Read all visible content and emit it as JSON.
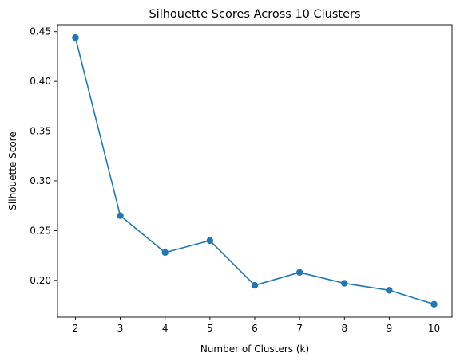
{
  "chart_data": {
    "type": "line",
    "title": "Silhouette Scores Across 10 Clusters",
    "xlabel": "Number of Clusters (k)",
    "ylabel": "Silhouette Score",
    "xlim": [
      1.6,
      10.4
    ],
    "ylim": [
      0.163,
      0.457
    ],
    "xticks": [
      2,
      3,
      4,
      5,
      6,
      7,
      8,
      9,
      10
    ],
    "yticks": [
      0.2,
      0.25,
      0.3,
      0.35,
      0.4,
      0.45
    ],
    "ytick_labels": [
      "0.20",
      "0.25",
      "0.30",
      "0.35",
      "0.40",
      "0.45"
    ],
    "grid": false,
    "marker": "circle",
    "color": "#1f77b4",
    "series": [
      {
        "x": [
          2,
          3,
          4,
          5,
          6,
          7,
          8,
          9,
          10
        ],
        "values": [
          0.444,
          0.265,
          0.228,
          0.24,
          0.195,
          0.208,
          0.197,
          0.19,
          0.176
        ]
      }
    ]
  }
}
